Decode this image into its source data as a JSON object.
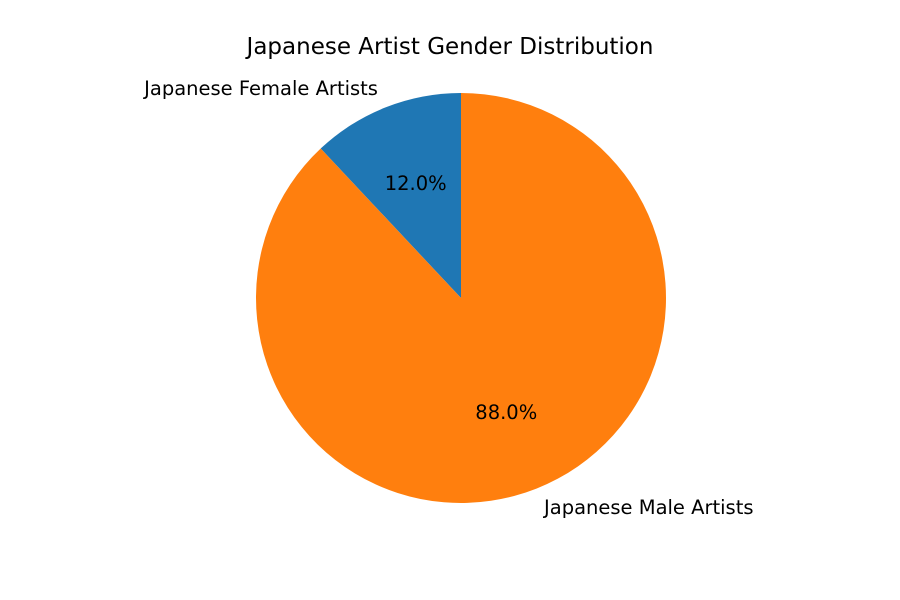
{
  "chart_data": {
    "type": "pie",
    "title": "Japanese Artist Gender Distribution",
    "slices": [
      {
        "label": "Japanese Female Artists",
        "value": 12.0,
        "percent_label": "12.0%",
        "color": "#1f77b4"
      },
      {
        "label": "Japanese Male Artists",
        "value": 88.0,
        "percent_label": "88.0%",
        "color": "#ff7f0e"
      }
    ],
    "start_angle_deg": 90,
    "direction": "counterclockwise",
    "legend": "none"
  }
}
